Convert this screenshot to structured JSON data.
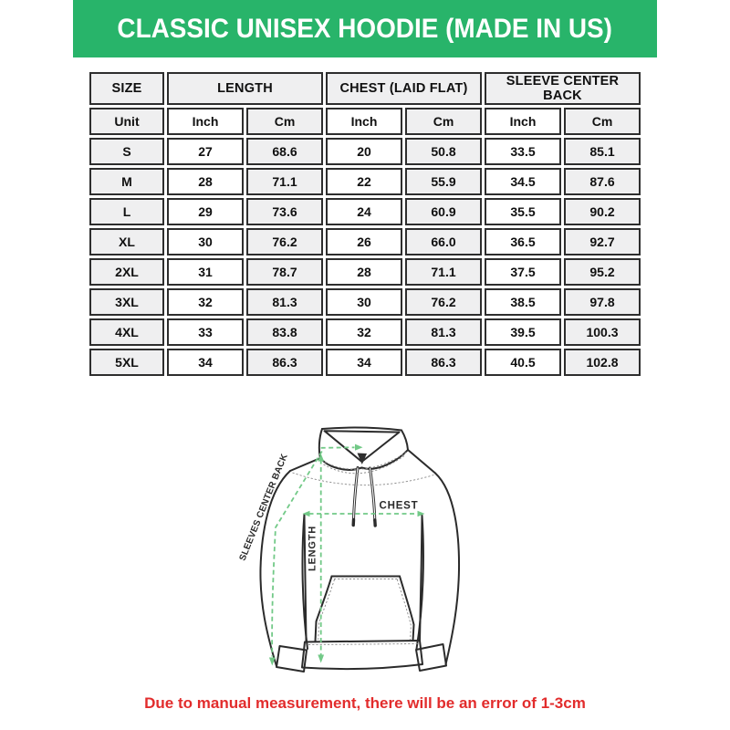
{
  "banner": {
    "title": "CLASSIC UNISEX HOODIE (MADE IN US)"
  },
  "table": {
    "group_headers": [
      {
        "label": "SIZE",
        "span": 1
      },
      {
        "label": "LENGTH",
        "span": 2
      },
      {
        "label": "CHEST (LAID FLAT)",
        "span": 2
      },
      {
        "label": "SLEEVE CENTER BACK",
        "span": 2
      }
    ],
    "unit_row": [
      "Unit",
      "Inch",
      "Cm",
      "Inch",
      "Cm",
      "Inch",
      "Cm"
    ],
    "rows": [
      [
        "S",
        "27",
        "68.6",
        "20",
        "50.8",
        "33.5",
        "85.1"
      ],
      [
        "M",
        "28",
        "71.1",
        "22",
        "55.9",
        "34.5",
        "87.6"
      ],
      [
        "L",
        "29",
        "73.6",
        "24",
        "60.9",
        "35.5",
        "90.2"
      ],
      [
        "XL",
        "30",
        "76.2",
        "26",
        "66.0",
        "36.5",
        "92.7"
      ],
      [
        "2XL",
        "31",
        "78.7",
        "28",
        "71.1",
        "37.5",
        "95.2"
      ],
      [
        "3XL",
        "32",
        "81.3",
        "30",
        "76.2",
        "38.5",
        "97.8"
      ],
      [
        "4XL",
        "33",
        "83.8",
        "32",
        "81.3",
        "39.5",
        "100.3"
      ],
      [
        "5XL",
        "34",
        "86.3",
        "34",
        "86.3",
        "40.5",
        "102.8"
      ]
    ]
  },
  "diagram": {
    "labels": {
      "chest": "CHEST",
      "length": "LENGTH",
      "sleeves_center_back": "SLEEVES CENTER BACK"
    }
  },
  "footer": {
    "note": "Due to manual measurement, there will be an error of 1-3cm"
  },
  "colors": {
    "banner_green": "#28b46a",
    "ink": "#2b2b2b",
    "table_border": "#2e2e2e",
    "cell_shade": "#efeff0",
    "diagram_green": "#72c987",
    "note_red": "#e22c2c"
  },
  "chart_data": {
    "type": "table",
    "title": "CLASSIC UNISEX HOODIE (MADE IN US)",
    "columns": [
      "SIZE",
      "LENGTH Inch",
      "LENGTH Cm",
      "CHEST (LAID FLAT) Inch",
      "CHEST (LAID FLAT) Cm",
      "SLEEVE CENTER BACK Inch",
      "SLEEVE CENTER BACK Cm"
    ],
    "rows": [
      [
        "S",
        27,
        68.6,
        20,
        50.8,
        33.5,
        85.1
      ],
      [
        "M",
        28,
        71.1,
        22,
        55.9,
        34.5,
        87.6
      ],
      [
        "L",
        29,
        73.6,
        24,
        60.9,
        35.5,
        90.2
      ],
      [
        "XL",
        30,
        76.2,
        26,
        66.0,
        36.5,
        92.7
      ],
      [
        "2XL",
        31,
        78.7,
        28,
        71.1,
        37.5,
        95.2
      ],
      [
        "3XL",
        32,
        81.3,
        30,
        76.2,
        38.5,
        97.8
      ],
      [
        "4XL",
        33,
        83.8,
        32,
        81.3,
        39.5,
        100.3
      ],
      [
        "5XL",
        34,
        86.3,
        34,
        86.3,
        40.5,
        102.8
      ]
    ],
    "note": "Due to manual measurement, there will be an error of 1-3cm"
  }
}
